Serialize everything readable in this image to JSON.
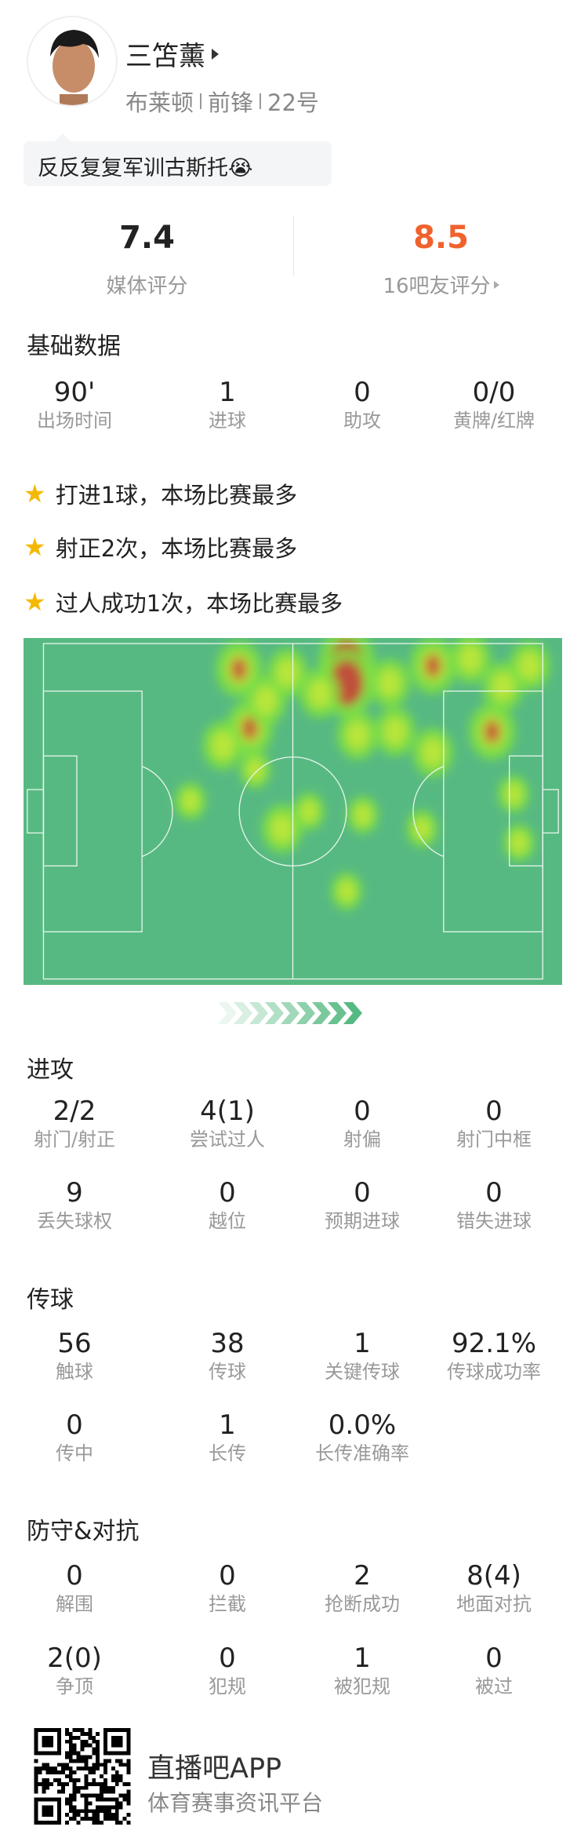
{
  "player": {
    "name": "三笘薰",
    "team": "布莱顿",
    "position": "前锋",
    "number": "22号",
    "comment": "反反复复军训古斯托",
    "comment_emoji": "😭"
  },
  "ratings": {
    "media": {
      "value": "7.4",
      "label": "媒体评分"
    },
    "fans": {
      "value": "8.5",
      "label": "16吧友评分",
      "color": "#f0622d"
    }
  },
  "basic": {
    "title": "基础数据",
    "items": [
      {
        "v": "90'",
        "l": "出场时间"
      },
      {
        "v": "1",
        "l": "进球"
      },
      {
        "v": "0",
        "l": "助攻"
      },
      {
        "v": "0/0",
        "l": "黄牌/红牌"
      }
    ]
  },
  "highlights": [
    "打进1球，本场比赛最多",
    "射正2次，本场比赛最多",
    "过人成功1次，本场比赛最多"
  ],
  "attack": {
    "title": "进攻",
    "rows": [
      [
        {
          "v": "2/2",
          "l": "射门/射正"
        },
        {
          "v": "4(1)",
          "l": "尝试过人"
        },
        {
          "v": "0",
          "l": "射偏"
        },
        {
          "v": "0",
          "l": "射门中框"
        }
      ],
      [
        {
          "v": "9",
          "l": "丢失球权"
        },
        {
          "v": "0",
          "l": "越位"
        },
        {
          "v": "0",
          "l": "预期进球"
        },
        {
          "v": "0",
          "l": "错失进球"
        }
      ]
    ]
  },
  "passing": {
    "title": "传球",
    "rows": [
      [
        {
          "v": "56",
          "l": "触球"
        },
        {
          "v": "38",
          "l": "传球"
        },
        {
          "v": "1",
          "l": "关键传球"
        },
        {
          "v": "92.1%",
          "l": "传球成功率"
        }
      ],
      [
        {
          "v": "0",
          "l": "传中"
        },
        {
          "v": "1",
          "l": "长传"
        },
        {
          "v": "0.0%",
          "l": "长传准确率"
        }
      ]
    ]
  },
  "defense": {
    "title": "防守&对抗",
    "rows": [
      [
        {
          "v": "0",
          "l": "解围"
        },
        {
          "v": "0",
          "l": "拦截"
        },
        {
          "v": "2",
          "l": "抢断成功"
        },
        {
          "v": "8(4)",
          "l": "地面对抗"
        }
      ],
      [
        {
          "v": "2(0)",
          "l": "争顶"
        },
        {
          "v": "0",
          "l": "犯规"
        },
        {
          "v": "1",
          "l": "被犯规"
        },
        {
          "v": "0",
          "l": "被过"
        }
      ]
    ]
  },
  "footer": {
    "app": "直播吧APP",
    "tagline": "体育赛事资讯平台"
  },
  "colors": {
    "pitch": "#57b982",
    "accent": "#f0622d",
    "star": "#f5b800"
  }
}
